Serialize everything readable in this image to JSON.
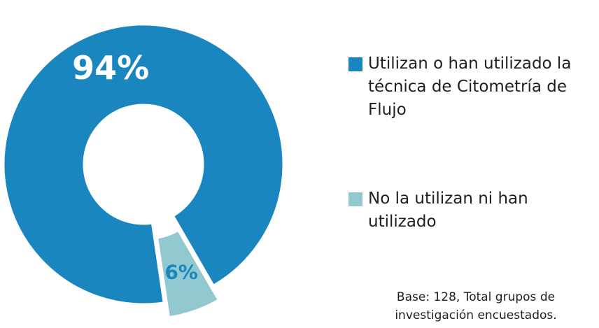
{
  "chart_data": {
    "type": "donut",
    "categories": [
      "Utilizan o han utilizado la técnica de Citometría de Flujo",
      "No la utilizan ni han utilizado"
    ],
    "values": [
      94,
      6
    ],
    "value_labels": [
      "94%",
      "6%"
    ],
    "colors": [
      "#1a86bf",
      "#92c9d1"
    ],
    "label_colors": [
      "#ffffff",
      "#1a86bf"
    ],
    "note": "Base: 128, Total grupos de investigación encuestados."
  }
}
